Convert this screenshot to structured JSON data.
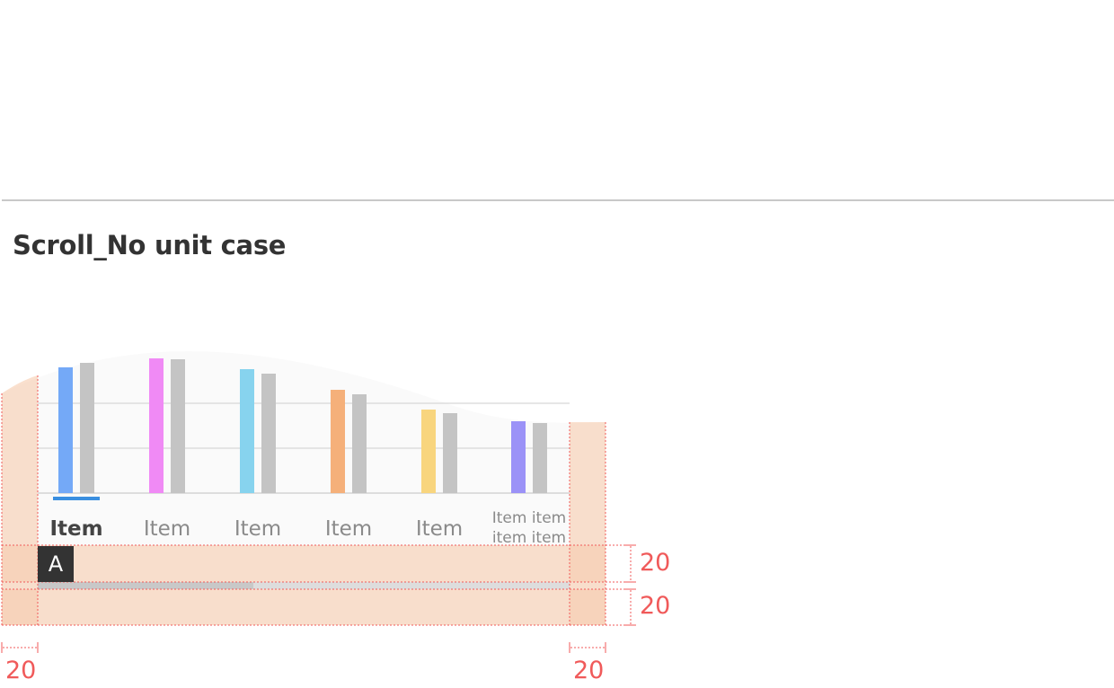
{
  "section_title": "Scroll_No unit case",
  "marker_label": "A",
  "chart_data": {
    "type": "bar",
    "categories": [
      "Item",
      "Item",
      "Item",
      "Item",
      "Item",
      "Item item item item"
    ],
    "category_lines": [
      [
        "Item"
      ],
      [
        "Item"
      ],
      [
        "Item"
      ],
      [
        "Item"
      ],
      [
        "Item"
      ],
      [
        "Item item",
        "item item"
      ]
    ],
    "selected_index": 0,
    "series": [
      {
        "values": [
          140,
          150,
          138,
          115,
          93,
          80
        ],
        "colors": [
          "#74a9f7",
          "#f08af5",
          "#87d3ee",
          "#f5b07a",
          "#f8d57e",
          "#9b92f7"
        ]
      },
      {
        "values": [
          145,
          149,
          133,
          110,
          89,
          78
        ],
        "color": "#c4c4c4"
      }
    ],
    "ylim": [
      0,
      150
    ],
    "grid": true
  },
  "dimensions": {
    "row_height_top": "20",
    "row_height_bottom": "20",
    "left_margin": "20",
    "right_margin": "20"
  },
  "colors": {
    "highlight_fill": "#f7cdb0",
    "dimension_line": "#f05a5a",
    "selected_underline": "#3a8fe0",
    "scrollbar_thumb": "#c8c8c8"
  }
}
